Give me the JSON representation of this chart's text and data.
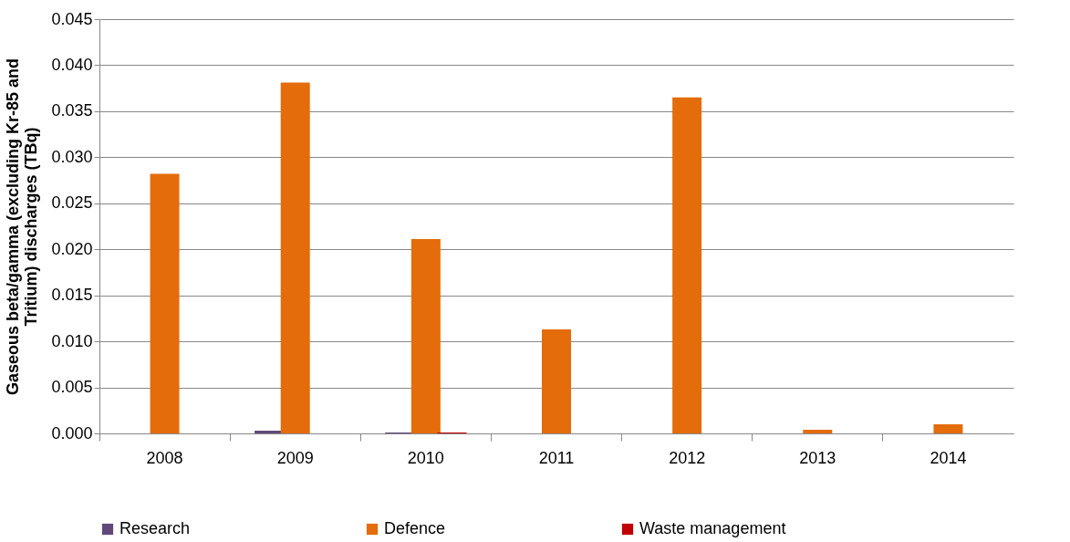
{
  "chart_data": {
    "type": "bar",
    "ylabel": "Gaseous beta/gamma (excluding Kr-85 and Tritium) discharges (TBq)",
    "categories": [
      "2008",
      "2009",
      "2010",
      "2011",
      "2012",
      "2013",
      "2014"
    ],
    "series": [
      {
        "name": "Research",
        "color": "#60497a",
        "values": [
          0,
          0.0003,
          0.0001,
          0,
          0,
          0,
          0
        ]
      },
      {
        "name": "Defence",
        "color": "#e46c0a",
        "values": [
          0.0282,
          0.0381,
          0.0211,
          0.0113,
          0.0365,
          0.0004,
          0.001
        ]
      },
      {
        "name": "Waste management",
        "color": "#c00000",
        "values": [
          0,
          0,
          0.0001,
          0,
          0,
          0,
          0
        ]
      }
    ],
    "ylim": [
      0,
      0.045
    ],
    "yticks": [
      {
        "value": 0,
        "label": "0.000"
      },
      0.005,
      {
        "value": 0.01,
        "label": "0.010"
      },
      0.015,
      {
        "value": 0.02,
        "label": "0.020"
      },
      0.025,
      {
        "value": 0.03,
        "label": "0.030"
      },
      0.035,
      {
        "value": 0.04,
        "label": "0.040"
      },
      0.045
    ],
    "grid": "y",
    "legend": "bottom"
  }
}
